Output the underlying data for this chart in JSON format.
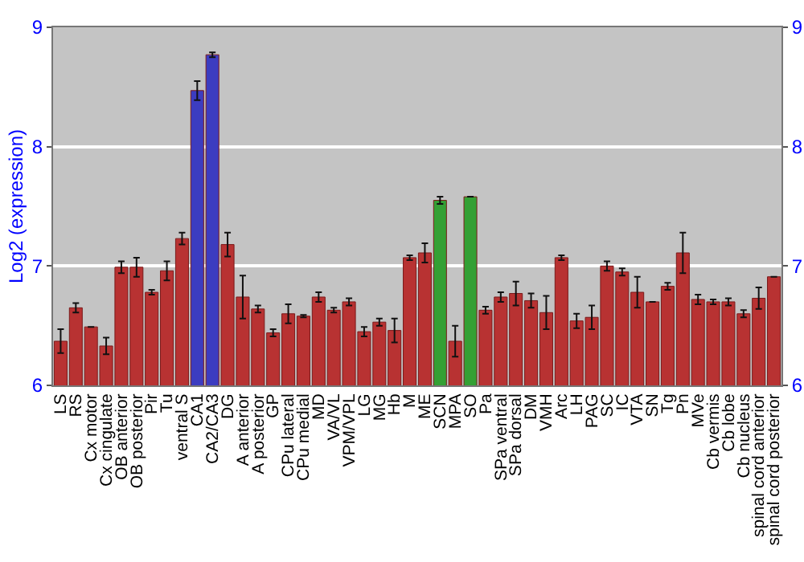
{
  "chart_data": {
    "type": "bar",
    "ylabel": "Log2 (expression)",
    "categories": [
      "LS",
      "RS",
      "Cx motor",
      "Cx cingulate",
      "OB anterior",
      "OB posterior",
      "Pir",
      "Tu",
      "ventral S",
      "CA1",
      "CA2/CA3",
      "DG",
      "A anterior",
      "A posterior",
      "GP",
      "CPu lateral",
      "CPu medial",
      "MD",
      "VA/VL",
      "VPM/VPL",
      "LG",
      "MG",
      "Hb",
      "M",
      "ME",
      "SCN",
      "MPA",
      "SO",
      "Pa",
      "SPa ventral",
      "SPa dorsal",
      "DM",
      "VMH",
      "Arc",
      "LH",
      "PAG",
      "SC",
      "IC",
      "VTA",
      "SN",
      "Tg",
      "Pn",
      "MVe",
      "Cb vermis",
      "Cb lobe",
      "Cb nucleus",
      "spinal cord anterior",
      "spinal cord posterior"
    ],
    "values": [
      6.37,
      6.65,
      6.49,
      6.33,
      6.99,
      6.99,
      6.78,
      6.96,
      7.23,
      8.47,
      8.77,
      7.18,
      6.74,
      6.64,
      6.44,
      6.6,
      6.58,
      6.74,
      6.63,
      6.7,
      6.45,
      6.53,
      6.46,
      7.07,
      7.11,
      7.55,
      6.37,
      7.58,
      6.63,
      6.74,
      6.77,
      6.71,
      6.61,
      7.07,
      6.54,
      6.57,
      7.0,
      6.95,
      6.78,
      6.7,
      6.83,
      7.11,
      6.72,
      6.7,
      6.7,
      6.6,
      6.73,
      6.91
    ],
    "errors": [
      0.1,
      0.04,
      null,
      0.07,
      0.05,
      0.08,
      0.02,
      0.08,
      0.05,
      0.08,
      0.02,
      0.1,
      0.18,
      0.03,
      0.03,
      0.08,
      0.01,
      0.04,
      0.02,
      0.03,
      0.04,
      0.03,
      0.1,
      0.02,
      0.08,
      0.03,
      0.13,
      null,
      0.03,
      0.04,
      0.1,
      0.06,
      0.14,
      0.02,
      0.06,
      0.1,
      0.04,
      0.03,
      0.13,
      null,
      0.03,
      0.17,
      0.04,
      0.02,
      0.03,
      0.03,
      0.09,
      null
    ],
    "colors": [
      "#b83232",
      "#b83232",
      "#b83232",
      "#b83232",
      "#b83232",
      "#b83232",
      "#b83232",
      "#b83232",
      "#b83232",
      "#3c3cc0",
      "#3c3cc0",
      "#b83232",
      "#b83232",
      "#b83232",
      "#b83232",
      "#b83232",
      "#b83232",
      "#b83232",
      "#b83232",
      "#b83232",
      "#b83232",
      "#b83232",
      "#b83232",
      "#b83232",
      "#b83232",
      "#34a034",
      "#b83232",
      "#34a034",
      "#b83232",
      "#b83232",
      "#b83232",
      "#b83232",
      "#b83232",
      "#b83232",
      "#b83232",
      "#b83232",
      "#b83232",
      "#b83232",
      "#b83232",
      "#b83232",
      "#b83232",
      "#b83232",
      "#b83232",
      "#b83232",
      "#b83232",
      "#b83232",
      "#b83232",
      "#b83232"
    ],
    "ylim": [
      6,
      9
    ],
    "yticks": [
      6,
      7,
      8,
      9
    ],
    "y2lim": [
      6,
      9
    ],
    "y2ticks": [
      6,
      7,
      8,
      9
    ],
    "grid": "y"
  }
}
